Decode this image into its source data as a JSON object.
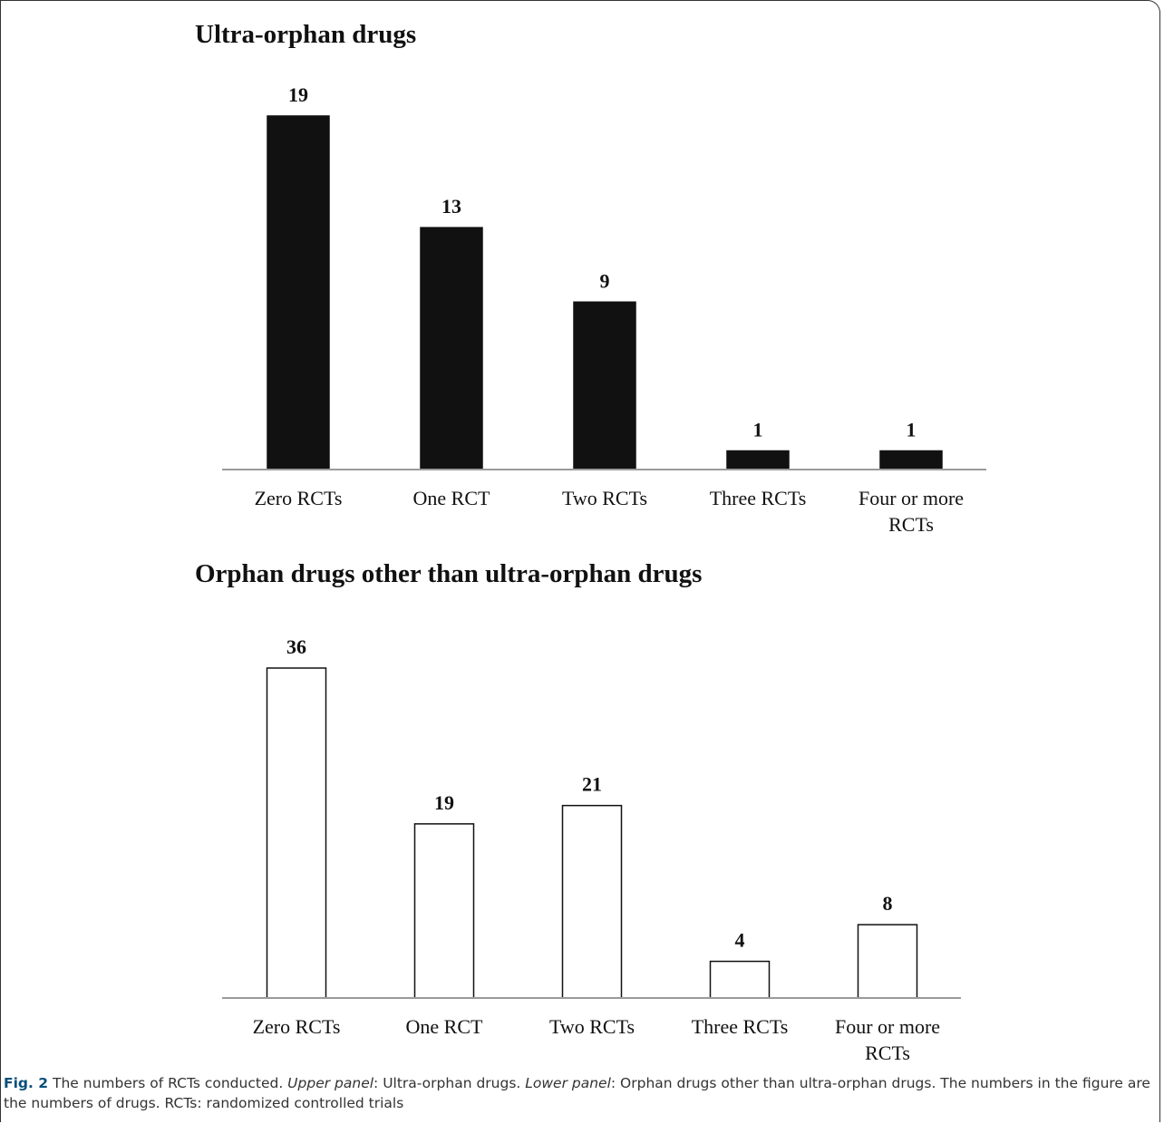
{
  "chart_data": [
    {
      "type": "bar",
      "title": "Ultra-orphan drugs",
      "categories": [
        "Zero RCTs",
        "One RCT",
        "Two RCTs",
        "Three RCTs",
        "Four or more RCTs"
      ],
      "values": [
        19,
        13,
        9,
        1,
        1
      ],
      "bar_fill": "#111111",
      "bar_stroke": "#111111",
      "ylim": [
        0,
        19
      ]
    },
    {
      "type": "bar",
      "title": "Orphan drugs other than ultra-orphan drugs",
      "categories": [
        "Zero RCTs",
        "One RCT",
        "Two RCTs",
        "Three RCTs",
        "Four or more RCTs"
      ],
      "values": [
        36,
        19,
        21,
        4,
        8
      ],
      "bar_fill": "#ffffff",
      "bar_stroke": "#111111",
      "ylim": [
        0,
        36
      ]
    }
  ],
  "caption": {
    "fig_label": "Fig. 2",
    "text1": " The numbers of RCTs conducted. ",
    "upper_label": "Upper panel",
    "text2": ": Ultra-orphan drugs. ",
    "lower_label": "Lower panel",
    "text3": ": Orphan drugs other than ultra-orphan drugs. The numbers in the figure are the numbers of drugs. RCTs: randomized controlled trials"
  }
}
